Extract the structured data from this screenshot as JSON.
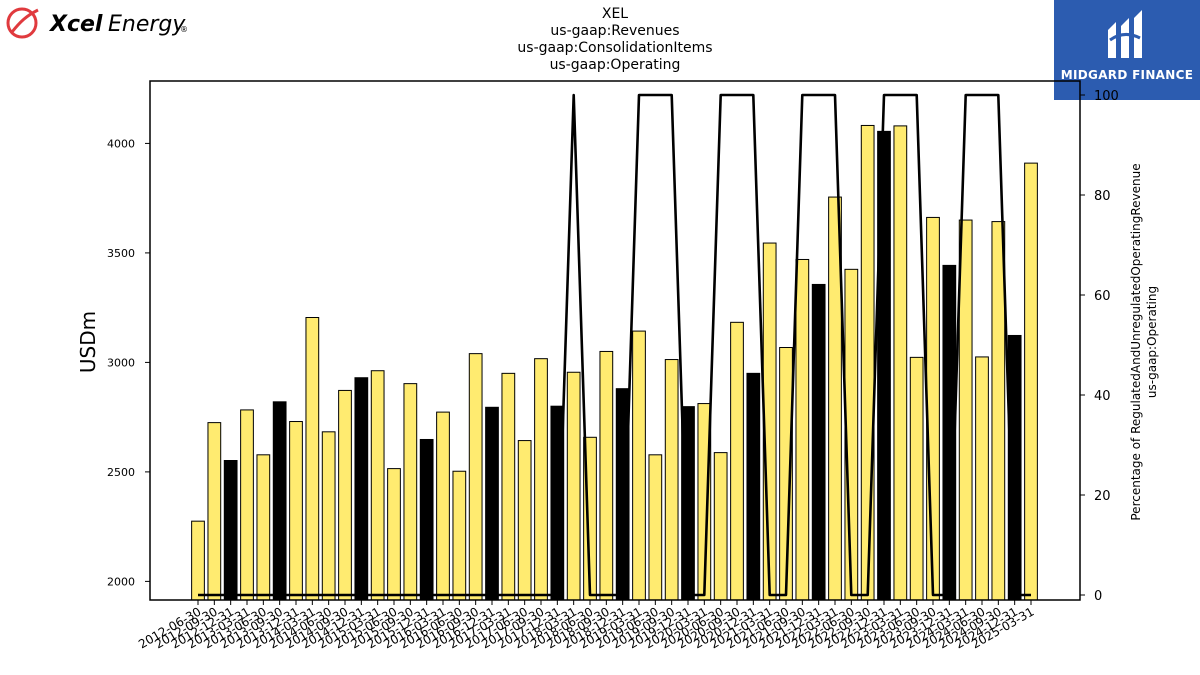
{
  "header": {
    "title_lines": [
      "XEL",
      "us-gaap:Revenues",
      "us-gaap:ConsolidationItems",
      "us-gaap:Operating"
    ]
  },
  "logos": {
    "left_brand_bold": "Xcel",
    "left_brand_light": "Energy",
    "left_trademark": "®",
    "right_brand": "MIDGARD FINANCE"
  },
  "colors": {
    "bar_highlight": "#ffeb70",
    "bar_dark": "#000000",
    "line": "#000000",
    "logo_bg": "#2c5cb0",
    "xcel_red": "#e03a3e"
  },
  "chart_data": {
    "type": "bar",
    "ylabel": "USDm",
    "y2label_lines": [
      "Percentage of RegulatedAndUnregulatedOperatingRevenue",
      "us-gaap:Operating"
    ],
    "ylim": [
      1915,
      4285
    ],
    "y2lim": [
      0,
      100
    ],
    "y_ticks": [
      2000,
      2500,
      3000,
      3500,
      4000
    ],
    "y2_ticks": [
      0,
      20,
      40,
      60,
      80,
      100
    ],
    "grid": false,
    "categories": [
      "2012-06-30",
      "2012-09-30",
      "2012-12-31",
      "2013-03-31",
      "2013-06-30",
      "2013-09-30",
      "2013-12-31",
      "2014-03-31",
      "2014-06-30",
      "2014-09-30",
      "2014-12-31",
      "2015-03-31",
      "2015-06-30",
      "2015-09-30",
      "2015-12-31",
      "2016-03-31",
      "2016-06-30",
      "2016-09-30",
      "2016-12-31",
      "2017-03-31",
      "2017-06-30",
      "2017-09-30",
      "2017-12-31",
      "2018-03-31",
      "2018-06-30",
      "2018-09-30",
      "2018-12-31",
      "2019-03-31",
      "2019-06-30",
      "2019-09-30",
      "2019-12-31",
      "2020-03-31",
      "2020-06-30",
      "2020-09-30",
      "2020-12-31",
      "2021-03-31",
      "2021-06-30",
      "2021-09-30",
      "2021-12-31",
      "2022-03-31",
      "2022-06-30",
      "2022-09-30",
      "2022-12-31",
      "2023-03-31",
      "2023-06-30",
      "2023-09-30",
      "2023-12-31",
      "2024-03-31",
      "2024-06-30",
      "2024-09-30",
      "2024-12-31",
      "2025-03-31"
    ],
    "x_tick_labels": [
      "2012-06-30",
      "2012-09-30",
      "2012-12-31",
      "2013-03-31",
      "2013-06-30",
      "2013-09-30",
      "2013-12-31",
      "2014-03-31",
      "2014-06-30",
      "2014-09-30",
      "2014-12-31",
      "2015-03-31",
      "2015-06-30",
      "2015-09-30",
      "2015-12-31",
      "2016-03-31",
      "2016-06-30",
      "2016-09-30",
      "2016-12-31",
      "2017-03-31",
      "2017-06-30",
      "2017-09-30",
      "2017-12-31",
      "2018-03-31",
      "2018-06-30",
      "2018-09-30",
      "2018-12-31",
      "2019-03-31",
      "2019-06-30",
      "2019-09-30",
      "2019-12-31",
      "2020-03-31",
      "2020-06-30",
      "2020-09-30",
      "2020-12-31",
      "2021-03-31",
      "2021-06-30",
      "2021-09-30",
      "2021-12-31",
      "2022-03-31",
      "2022-06-30",
      "2022-09-30",
      "2022-12-31",
      "2023-03-31",
      "2023-06-30",
      "2023-09-30",
      "2023-12-31",
      "2024-03-31",
      "2024-06-30",
      "2024-09-30",
      "2024-12-31",
      "2025-03-31"
    ],
    "values": [
      2275,
      2725,
      2552,
      2783,
      2578,
      2820,
      2730,
      3205,
      2683,
      2872,
      2930,
      2962,
      2515,
      2903,
      2648,
      2773,
      2503,
      3040,
      2795,
      2950,
      2643,
      3017,
      2800,
      2955,
      2658,
      3050,
      2880,
      3143,
      2578,
      3013,
      2798,
      2812,
      2588,
      3183,
      2950,
      3545,
      3068,
      3470,
      3356,
      3755,
      3425,
      4082,
      4055,
      4080,
      3023,
      3662,
      3443,
      3650,
      3025,
      3643,
      3123,
      3910
    ],
    "dark_bars": [
      2,
      5,
      10,
      14,
      18,
      22,
      26,
      30,
      34,
      38,
      42,
      46,
      50
    ],
    "percentage_line": [
      0,
      0,
      0,
      0,
      0,
      0,
      0,
      0,
      0,
      0,
      0,
      0,
      0,
      0,
      0,
      0,
      0,
      0,
      0,
      0,
      0,
      0,
      0,
      100,
      0,
      0,
      0,
      100,
      100,
      100,
      0,
      0,
      100,
      100,
      100,
      0,
      0,
      100,
      100,
      100,
      0,
      0,
      100,
      100,
      100,
      0,
      0,
      100,
      100,
      100,
      0,
      0
    ]
  }
}
